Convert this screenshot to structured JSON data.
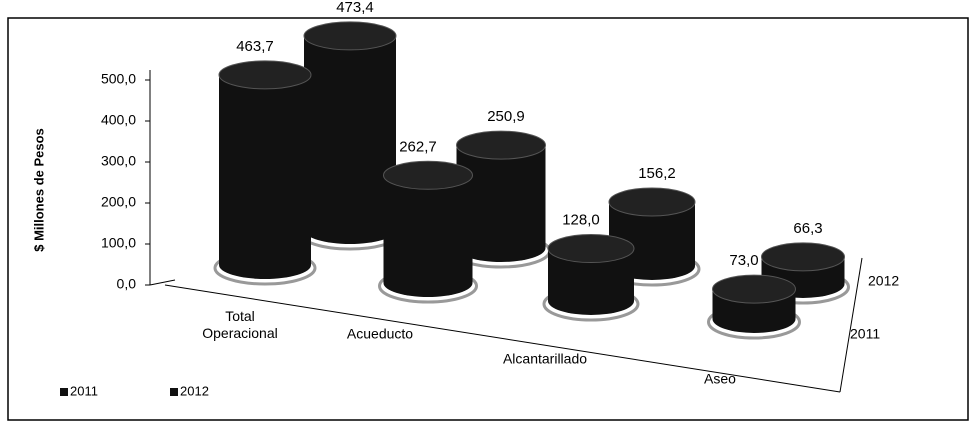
{
  "chart_data": {
    "type": "bar3d",
    "y_label": "$ Millones de Pesos",
    "categories": [
      "Total Operacional",
      "Acueducto",
      "Alcantarillado",
      "Aseo"
    ],
    "series": [
      {
        "name": "2011",
        "color": "#111111",
        "values": [
          463.7,
          262.7,
          128.0,
          73.0
        ],
        "value_labels": [
          "463,7",
          "262,7",
          "128,0",
          "73,0"
        ]
      },
      {
        "name": "2012",
        "color": "#111111",
        "values": [
          473.4,
          250.9,
          156.2,
          66.3
        ],
        "value_labels": [
          "473,4",
          "250,9",
          "156,2",
          "66,3"
        ]
      }
    ],
    "ylim": [
      0,
      500
    ],
    "yticks": [
      {
        "value": 0,
        "label": "0,0"
      },
      {
        "value": 100,
        "label": "100,0"
      },
      {
        "value": 200,
        "label": "200,0"
      },
      {
        "value": 300,
        "label": "300,0"
      },
      {
        "value": 400,
        "label": "400,0"
      },
      {
        "value": 500,
        "label": "500,0"
      }
    ],
    "legend": "bottom-left"
  }
}
